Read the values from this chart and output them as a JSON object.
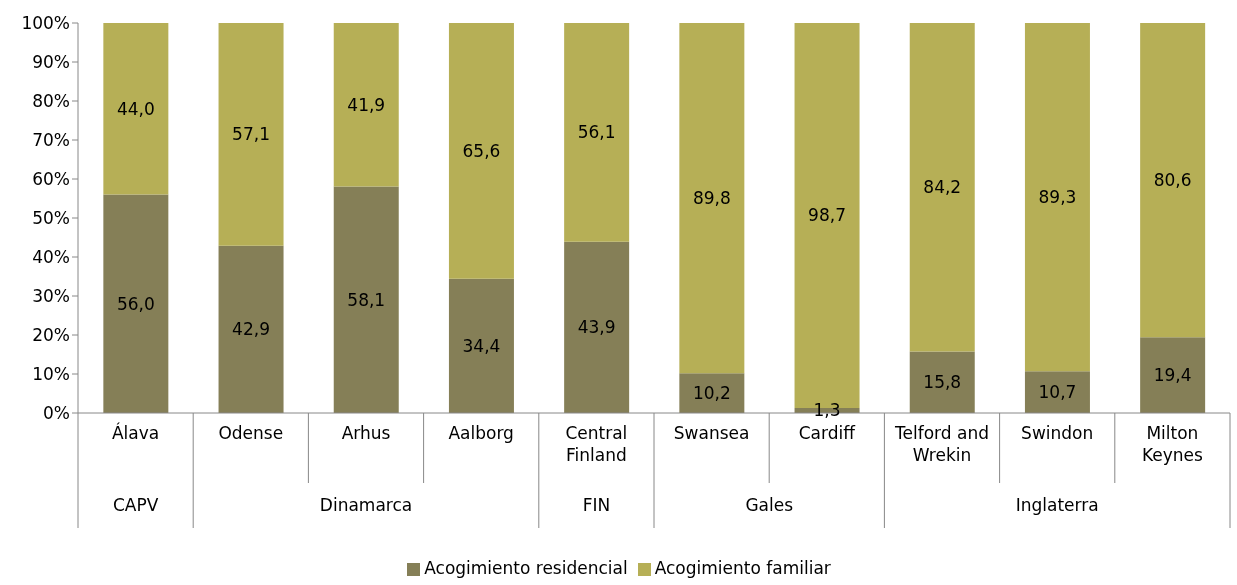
{
  "chart_data": {
    "type": "bar",
    "stacked": true,
    "categories": [
      "Álava",
      "Odense",
      "Arhus",
      "Aalborg",
      "Central Finland",
      "Swansea",
      "Cardiff",
      "Telford and Wrekin",
      "Swindon",
      "Milton Keynes"
    ],
    "series": [
      {
        "name": "Acogimiento residencial",
        "color": "#857f57",
        "values": [
          56.0,
          42.9,
          58.1,
          34.4,
          43.9,
          10.2,
          1.3,
          15.8,
          10.7,
          19.4
        ],
        "value_labels": [
          "56,0",
          "42,9",
          "58,1",
          "34,4",
          "43,9",
          "10,2",
          "1,3",
          "15,8",
          "10,7",
          "19,4"
        ]
      },
      {
        "name": "Acogimiento familiar",
        "color": "#b6af56",
        "values": [
          44.0,
          57.1,
          41.9,
          65.6,
          56.1,
          89.8,
          98.7,
          84.2,
          89.3,
          80.6
        ],
        "value_labels": [
          "44,0",
          "57,1",
          "41,9",
          "65,6",
          "56,1",
          "89,8",
          "98,7",
          "84,2",
          "89,3",
          "80,6"
        ]
      }
    ],
    "annotations": [
      "CAPV",
      "Dinamarca",
      "FIN",
      "Gales",
      "Inglaterra"
    ],
    "ylim": [
      0,
      100
    ],
    "yticks": [
      {
        "value": 0,
        "label": "0%"
      },
      {
        "value": 10,
        "label": "10%"
      },
      {
        "value": 20,
        "label": "20%"
      },
      {
        "value": 30,
        "label": "30%"
      },
      {
        "value": 40,
        "label": "40%"
      },
      {
        "value": 50,
        "label": "50%"
      },
      {
        "value": 60,
        "label": "60%"
      },
      {
        "value": 70,
        "label": "70%"
      },
      {
        "value": 80,
        "label": "80%"
      },
      {
        "value": 90,
        "label": "90%"
      },
      {
        "value": 100,
        "label": "100%"
      }
    ],
    "grid": false,
    "legend": "bottom"
  }
}
